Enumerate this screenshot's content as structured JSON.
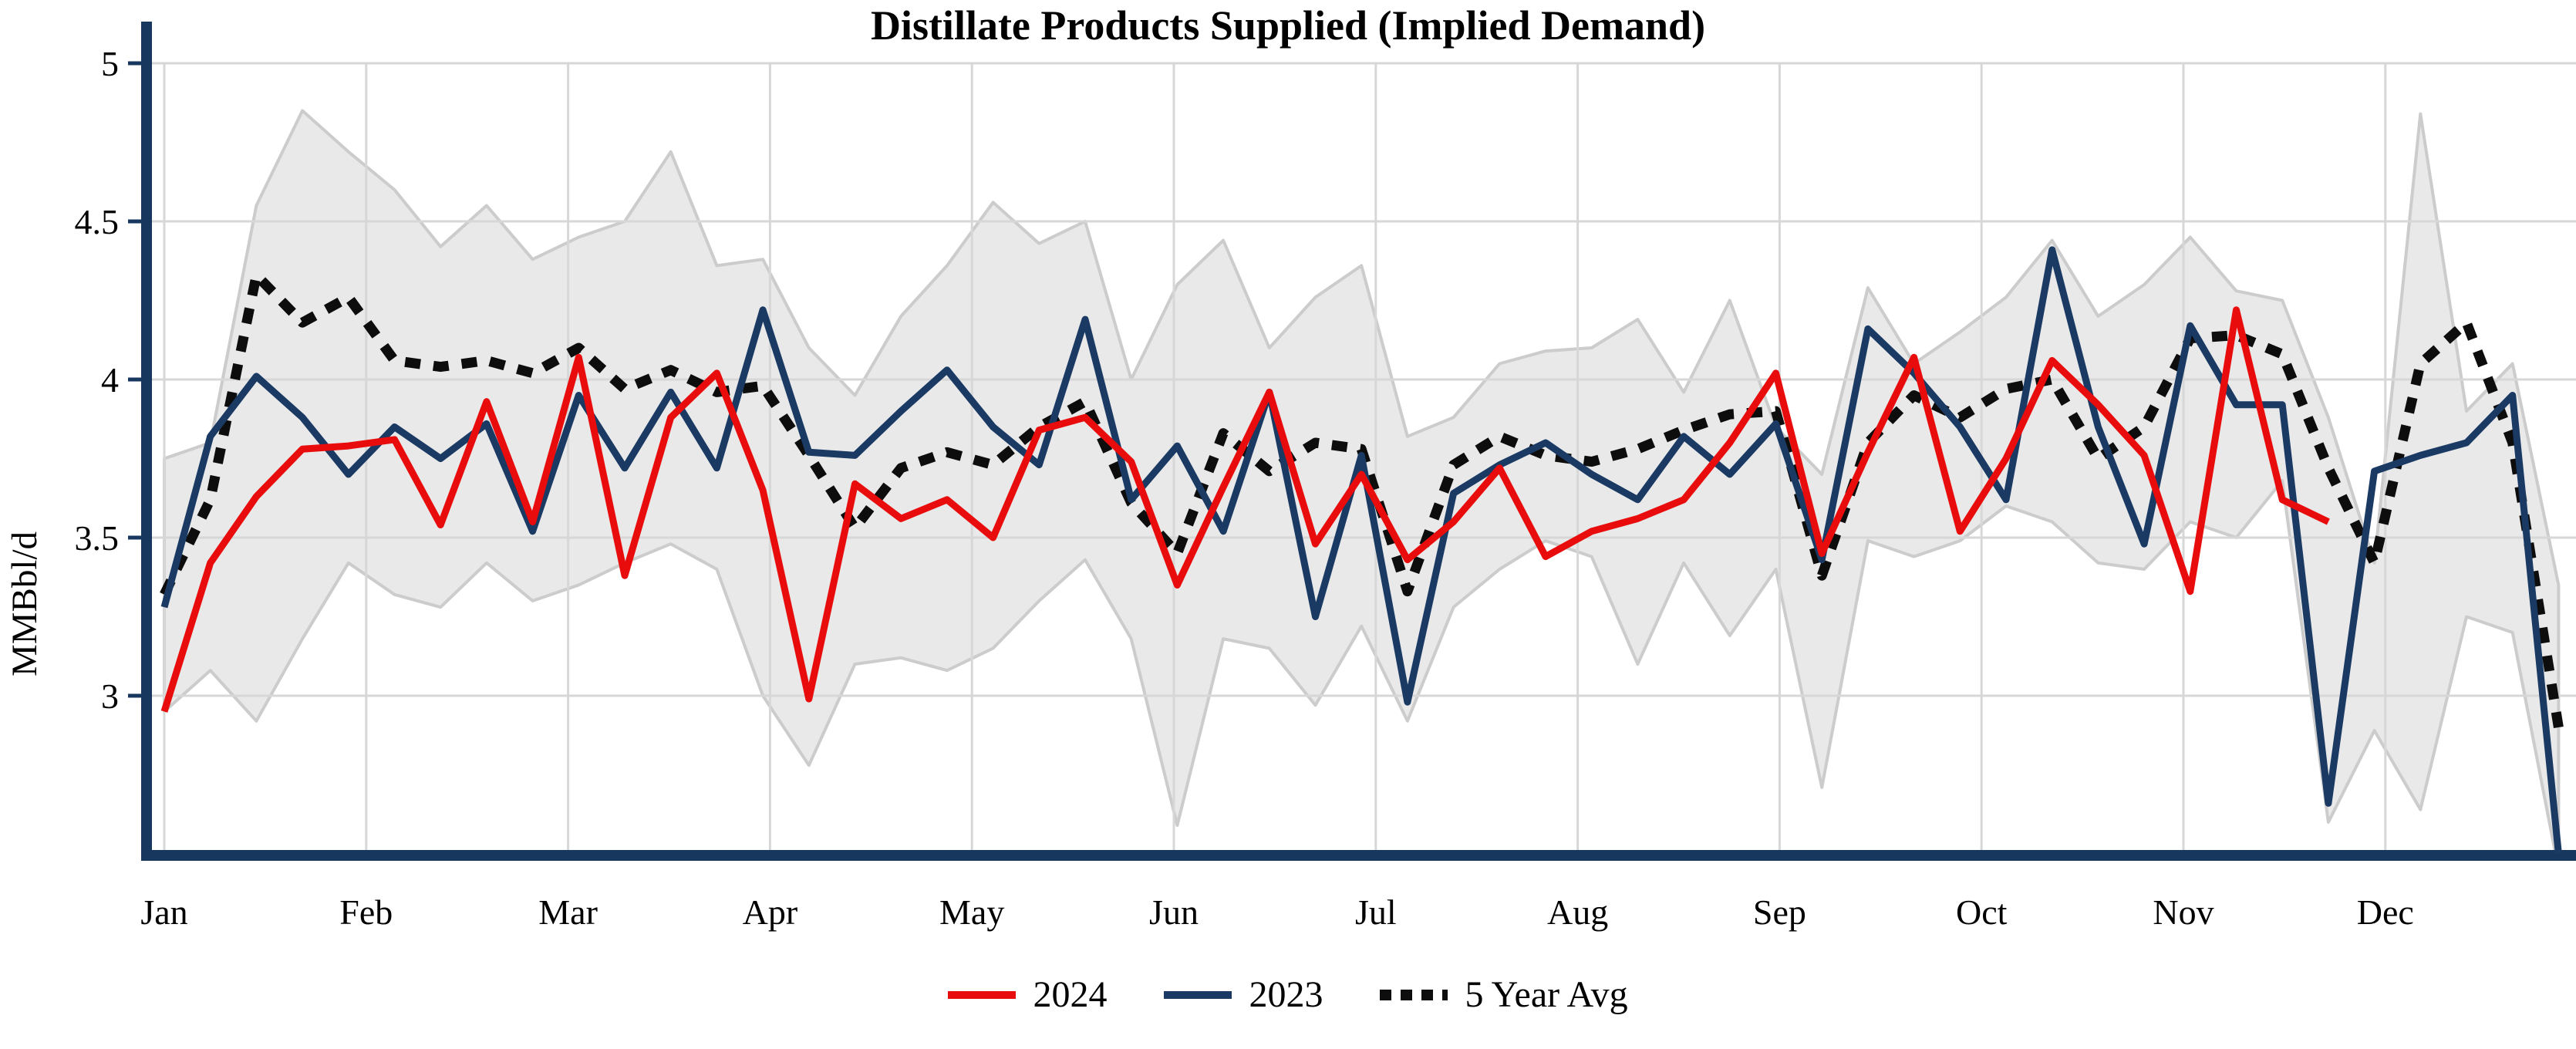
{
  "title": "Distillate Products Supplied (Implied Demand)",
  "y_axis": {
    "label": "MMBbl/d",
    "ticks": [
      "5",
      "4.5",
      "4",
      "3.5",
      "3"
    ],
    "tick_values": [
      5,
      4.5,
      4,
      3.5,
      3
    ],
    "range_shown": [
      2.49,
      5.0
    ]
  },
  "x_axis": {
    "months": [
      "Jan",
      "Feb",
      "Mar",
      "Apr",
      "May",
      "Jun",
      "Jul",
      "Aug",
      "Sep",
      "Oct",
      "Nov",
      "Dec"
    ]
  },
  "legend": [
    {
      "label": "2024",
      "color": "#e80c0c",
      "style": "solid"
    },
    {
      "label": "2023",
      "color": "#1a3a64",
      "style": "solid"
    },
    {
      "label": "5 Year Avg",
      "color": "#0d0d0d",
      "style": "dotted"
    }
  ],
  "chart_data": {
    "type": "line",
    "title": "Distillate Products Supplied (Implied Demand)",
    "ylabel": "MMBbl/d",
    "xlabel": "",
    "x_unit": "week of year (weekly data)",
    "ylim": [
      2.49,
      5.02
    ],
    "grid": true,
    "legend_position": "bottom",
    "months": [
      "Jan",
      "Feb",
      "Mar",
      "Apr",
      "May",
      "Jun",
      "Jul",
      "Aug",
      "Sep",
      "Oct",
      "Nov",
      "Dec"
    ],
    "series": [
      {
        "name": "2024",
        "color": "#e80c0c",
        "style": "solid",
        "values": [
          2.95,
          3.42,
          3.63,
          3.78,
          3.79,
          3.81,
          3.54,
          3.93,
          3.55,
          4.07,
          3.38,
          3.88,
          4.02,
          3.65,
          2.99,
          3.67,
          3.56,
          3.62,
          3.5,
          3.84,
          3.88,
          3.74,
          3.35,
          3.66,
          3.96,
          3.48,
          3.7,
          3.43,
          3.55,
          3.72,
          3.44,
          3.52,
          3.56,
          3.62,
          3.8,
          4.02,
          3.45,
          3.77,
          4.07,
          3.52,
          3.75,
          4.06,
          3.92,
          3.76,
          3.33,
          4.22,
          3.62,
          3.55
        ]
      },
      {
        "name": "2023",
        "color": "#1a3a64",
        "style": "solid",
        "values": [
          3.28,
          3.82,
          4.01,
          3.88,
          3.7,
          3.85,
          3.75,
          3.86,
          3.52,
          3.95,
          3.72,
          3.96,
          3.72,
          4.22,
          3.77,
          3.76,
          3.9,
          4.03,
          3.85,
          3.73,
          4.19,
          3.62,
          3.79,
          3.52,
          3.96,
          3.25,
          3.76,
          2.98,
          3.64,
          3.73,
          3.8,
          3.7,
          3.62,
          3.82,
          3.7,
          3.86,
          3.43,
          4.16,
          4.02,
          3.85,
          3.62,
          4.41,
          3.85,
          3.48,
          4.17,
          3.92,
          3.92,
          2.66,
          3.71,
          3.76,
          3.8,
          3.95,
          2.5
        ]
      },
      {
        "name": "5 Year Avg",
        "color": "#0d0d0d",
        "style": "dotted",
        "values": [
          3.32,
          3.62,
          4.33,
          4.18,
          4.26,
          4.06,
          4.04,
          4.06,
          4.02,
          4.1,
          3.97,
          4.03,
          3.96,
          3.98,
          3.76,
          3.53,
          3.72,
          3.77,
          3.73,
          3.85,
          3.93,
          3.61,
          3.45,
          3.83,
          3.71,
          3.8,
          3.78,
          3.33,
          3.73,
          3.82,
          3.76,
          3.74,
          3.78,
          3.84,
          3.89,
          3.9,
          3.38,
          3.8,
          3.95,
          3.88,
          3.97,
          4.0,
          3.75,
          3.85,
          4.13,
          4.14,
          4.08,
          3.72,
          3.42,
          4.05,
          4.18,
          3.8,
          2.9
        ]
      }
    ],
    "band": {
      "name": "5-year range (shaded)",
      "fill": "#e9e9e9",
      "edge": "#cccccc",
      "upper": [
        3.75,
        3.8,
        4.55,
        4.85,
        4.72,
        4.6,
        4.42,
        4.55,
        4.38,
        4.45,
        4.5,
        4.72,
        4.36,
        4.38,
        4.1,
        3.95,
        4.2,
        4.36,
        4.56,
        4.43,
        4.5,
        4.0,
        4.3,
        4.44,
        4.1,
        4.26,
        4.36,
        3.82,
        3.88,
        4.05,
        4.09,
        4.1,
        4.19,
        3.96,
        4.25,
        3.85,
        3.7,
        4.29,
        4.05,
        4.15,
        4.26,
        4.44,
        4.2,
        4.3,
        4.45,
        4.28,
        4.25,
        3.88,
        3.42,
        4.84,
        3.9,
        4.05,
        3.35
      ],
      "lower": [
        2.95,
        3.08,
        2.92,
        3.18,
        3.42,
        3.32,
        3.28,
        3.42,
        3.3,
        3.35,
        3.42,
        3.48,
        3.4,
        3.0,
        2.78,
        3.1,
        3.12,
        3.08,
        3.15,
        3.3,
        3.43,
        3.18,
        2.59,
        3.18,
        3.15,
        2.97,
        3.22,
        2.92,
        3.28,
        3.4,
        3.49,
        3.44,
        3.1,
        3.42,
        3.19,
        3.4,
        2.71,
        3.49,
        3.44,
        3.49,
        3.6,
        3.55,
        3.42,
        3.4,
        3.55,
        3.5,
        3.68,
        2.6,
        2.89,
        2.64,
        3.25,
        3.2,
        2.45
      ]
    }
  }
}
